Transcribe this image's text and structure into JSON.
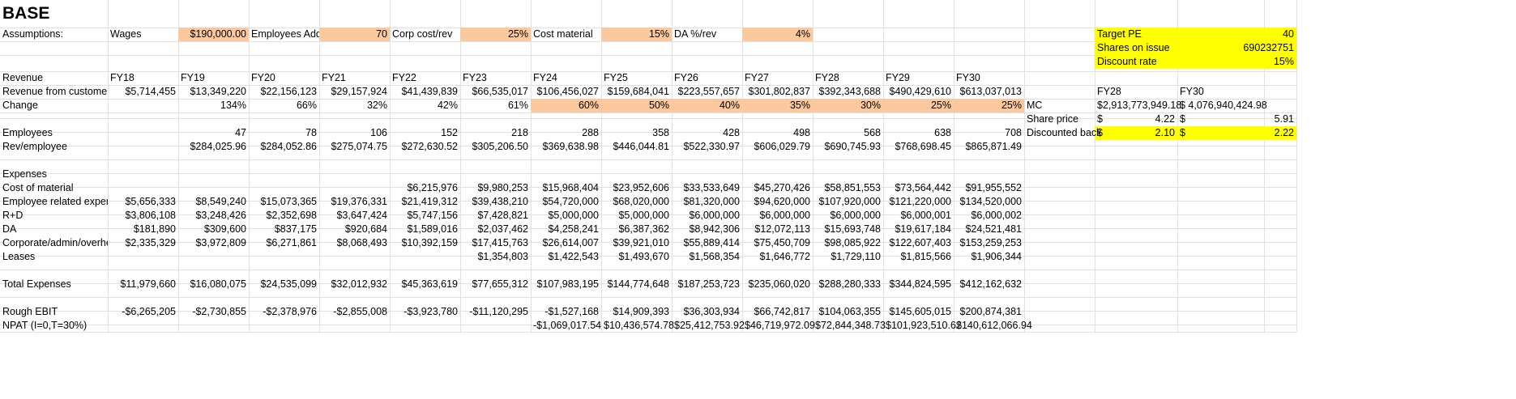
{
  "sheet": {
    "title": "BASE",
    "colors": {
      "grid": "#e1e1e1",
      "orange": "#fcc99e",
      "yellow": "#ffff00",
      "text": "#000000"
    },
    "assumptions": {
      "label": "Assumptions:",
      "items": [
        {
          "label": "Wages",
          "value": "$190,000.00"
        },
        {
          "label": "Employees Adde",
          "value": "70"
        },
        {
          "label": "Corp cost/rev",
          "value": "25%"
        },
        {
          "label": "Cost material",
          "value": "15%"
        },
        {
          "label": "DA %/rev",
          "value": "4%"
        }
      ]
    },
    "valuation": {
      "target_pe_label": "Target PE",
      "target_pe": "40",
      "shares_label": "Shares on issue",
      "shares": "690232751",
      "discount_label": "Discount rate",
      "discount": "15%",
      "col1": "FY28",
      "col2": "FY30",
      "mc_label": "MC",
      "mc1": "$2,913,773,949.18",
      "mc2": "$ 4,076,940,424.98",
      "share_price_label": "Share price",
      "sp_cur1": "$",
      "sp_val1": "4.22",
      "sp_cur2": "$",
      "sp_val2": "5.91",
      "disc_back_label": "Discounted back",
      "db_cur1": "$",
      "db_val1": "2.10",
      "db_cur2": "$",
      "db_val2": "2.22"
    },
    "revenue_header": "Revenue",
    "years": [
      "FY18",
      "FY19",
      "FY20",
      "FY21",
      "FY22",
      "FY23",
      "FY24",
      "FY25",
      "FY26",
      "FY27",
      "FY28",
      "FY29",
      "FY30"
    ],
    "rows": [
      {
        "label": "Revenue from customers",
        "values": [
          "$5,714,455",
          "$13,349,220",
          "$22,156,123",
          "$29,157,924",
          "$41,439,839",
          "$66,535,017",
          "$106,456,027",
          "$159,684,041",
          "$223,557,657",
          "$301,802,837",
          "$392,343,688",
          "$490,429,610",
          "$613,037,013"
        ]
      },
      {
        "label": "Change",
        "values": [
          "",
          "134%",
          "66%",
          "32%",
          "42%",
          "61%",
          "60%",
          "50%",
          "40%",
          "35%",
          "30%",
          "25%",
          "25%"
        ]
      },
      {
        "label": "",
        "values": [
          "",
          "",
          "",
          "",
          "",
          "",
          "",
          "",
          "",
          "",
          "",
          "",
          ""
        ]
      },
      {
        "label": "Employees",
        "values": [
          "",
          "47",
          "78",
          "106",
          "152",
          "218",
          "288",
          "358",
          "428",
          "498",
          "568",
          "638",
          "708"
        ]
      },
      {
        "label": "Rev/employee",
        "values": [
          "",
          "$284,025.96",
          "$284,052.86",
          "$275,074.75",
          "$272,630.52",
          "$305,206.50",
          "$369,638.98",
          "$446,044.81",
          "$522,330.97",
          "$606,029.79",
          "$690,745.93",
          "$768,698.45",
          "$865,871.49"
        ]
      },
      {
        "label": "",
        "values": [
          "",
          "",
          "",
          "",
          "",
          "",
          "",
          "",
          "",
          "",
          "",
          "",
          ""
        ]
      },
      {
        "label": "Expenses",
        "values": [
          "",
          "",
          "",
          "",
          "",
          "",
          "",
          "",
          "",
          "",
          "",
          "",
          ""
        ]
      },
      {
        "label": "Cost of material",
        "values": [
          "",
          "",
          "",
          "",
          "$6,215,976",
          "$9,980,253",
          "$15,968,404",
          "$23,952,606",
          "$33,533,649",
          "$45,270,426",
          "$58,851,553",
          "$73,564,442",
          "$91,955,552"
        ]
      },
      {
        "label": "Employee related expenses",
        "values": [
          "$5,656,333",
          "$8,549,240",
          "$15,073,365",
          "$19,376,331",
          "$21,419,312",
          "$39,438,210",
          "$54,720,000",
          "$68,020,000",
          "$81,320,000",
          "$94,620,000",
          "$107,920,000",
          "$121,220,000",
          "$134,520,000"
        ]
      },
      {
        "label": "R+D",
        "values": [
          "$3,806,108",
          "$3,248,426",
          "$2,352,698",
          "$3,647,424",
          "$5,747,156",
          "$7,428,821",
          "$5,000,000",
          "$5,000,000",
          "$6,000,000",
          "$6,000,000",
          "$6,000,000",
          "$6,000,001",
          "$6,000,002"
        ]
      },
      {
        "label": "DA",
        "values": [
          "$181,890",
          "$309,600",
          "$837,175",
          "$920,684",
          "$1,589,016",
          "$2,037,462",
          "$4,258,241",
          "$6,387,362",
          "$8,942,306",
          "$12,072,113",
          "$15,693,748",
          "$19,617,184",
          "$24,521,481"
        ]
      },
      {
        "label": "Corporate/admin/overheads",
        "values": [
          "$2,335,329",
          "$3,972,809",
          "$6,271,861",
          "$8,068,493",
          "$10,392,159",
          "$17,415,763",
          "$26,614,007",
          "$39,921,010",
          "$55,889,414",
          "$75,450,709",
          "$98,085,922",
          "$122,607,403",
          "$153,259,253"
        ]
      },
      {
        "label": "Leases",
        "values": [
          "",
          "",
          "",
          "",
          "",
          "$1,354,803",
          "$1,422,543",
          "$1,493,670",
          "$1,568,354",
          "$1,646,772",
          "$1,729,110",
          "$1,815,566",
          "$1,906,344"
        ]
      },
      {
        "label": "",
        "values": [
          "",
          "",
          "",
          "",
          "",
          "",
          "",
          "",
          "",
          "",
          "",
          "",
          ""
        ]
      },
      {
        "label": "Total Expenses",
        "values": [
          "$11,979,660",
          "$16,080,075",
          "$24,535,099",
          "$32,012,932",
          "$45,363,619",
          "$77,655,312",
          "$107,983,195",
          "$144,774,648",
          "$187,253,723",
          "$235,060,020",
          "$288,280,333",
          "$344,824,595",
          "$412,162,632"
        ]
      },
      {
        "label": "",
        "values": [
          "",
          "",
          "",
          "",
          "",
          "",
          "",
          "",
          "",
          "",
          "",
          "",
          ""
        ]
      },
      {
        "label": "Rough EBIT",
        "values": [
          "-$6,265,205",
          "-$2,730,855",
          "-$2,378,976",
          "-$2,855,008",
          "-$3,923,780",
          "-$11,120,295",
          "-$1,527,168",
          "$14,909,393",
          "$36,303,934",
          "$66,742,817",
          "$104,063,355",
          "$145,605,015",
          "$200,874,381"
        ]
      },
      {
        "label": "NPAT (I=0,T=30%)",
        "values": [
          "",
          "",
          "",
          "",
          "",
          "",
          "-$1,069,017.54",
          "$10,436,574.78",
          "$25,412,753.92",
          "$46,719,972.09",
          "$72,844,348.73",
          "$101,923,510.62",
          "$140,612,066.94"
        ]
      }
    ]
  }
}
